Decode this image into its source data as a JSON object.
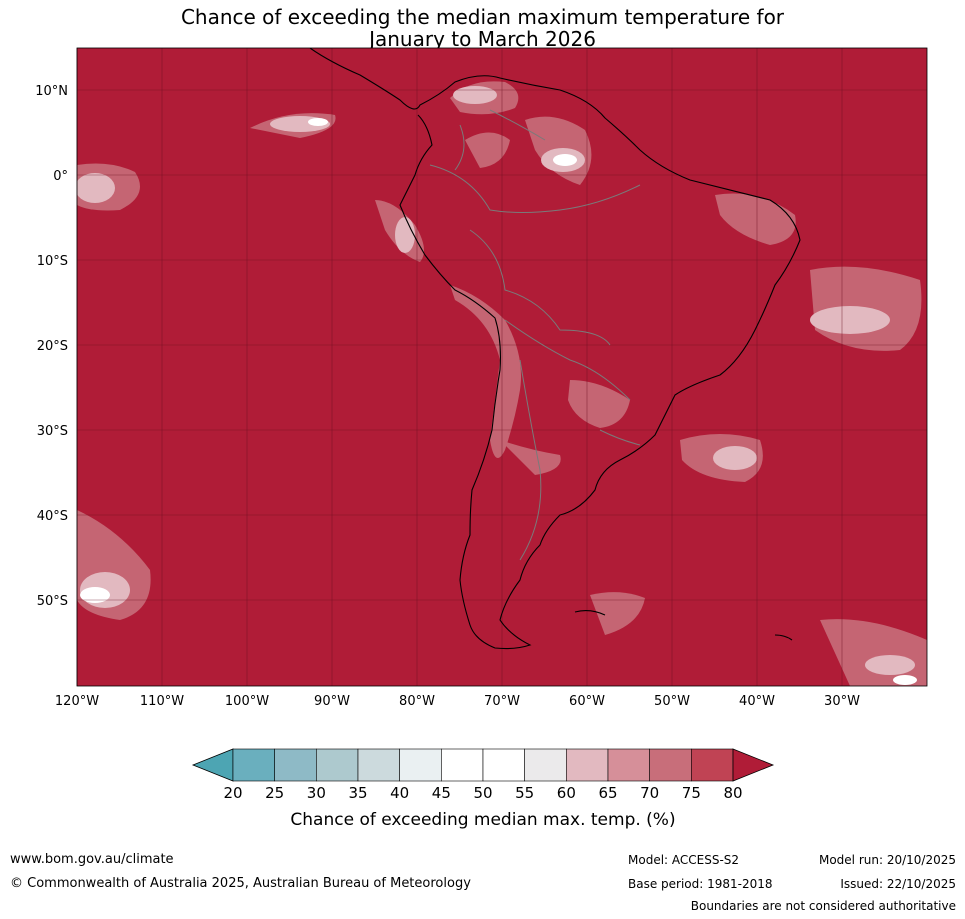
{
  "title": {
    "line1": "Chance of exceeding the median maximum temperature for",
    "line2": "January to March 2026"
  },
  "map": {
    "lat_labels": [
      "10°N",
      "0°",
      "10°S",
      "20°S",
      "30°S",
      "40°S",
      "50°S"
    ],
    "lon_labels": [
      "120°W",
      "110°W",
      "100°W",
      "90°W",
      "80°W",
      "70°W",
      "60°W",
      "50°W",
      "40°W",
      "30°W"
    ],
    "background_color": "#b01c37"
  },
  "colorbar": {
    "ticks": [
      "20",
      "25",
      "30",
      "35",
      "40",
      "45",
      "50",
      "55",
      "60",
      "65",
      "70",
      "75",
      "80"
    ],
    "colors": [
      "#6aafbe",
      "#8ebac6",
      "#adc9ce",
      "#ccdadd",
      "#eaf0f2",
      "#ffffff",
      "#ffffff",
      "#ebeaeb",
      "#e2b9c0",
      "#d68f99",
      "#c86e7a",
      "#c04354"
    ],
    "under_color": "#4da5b3",
    "over_color": "#b01c37",
    "label": "Chance of exceeding median max. temp. (%)"
  },
  "footer": {
    "url": "www.bom.gov.au/climate",
    "copyright": "© Commonwealth of Australia 2025, Australian Bureau of Meteorology",
    "model": "Model: ACCESS-S2",
    "base_period": "Base period: 1981-2018",
    "model_run": "Model run: 20/10/2025",
    "issued": "Issued: 22/10/2025",
    "disclaimer": "Boundaries are not considered authoritative"
  }
}
